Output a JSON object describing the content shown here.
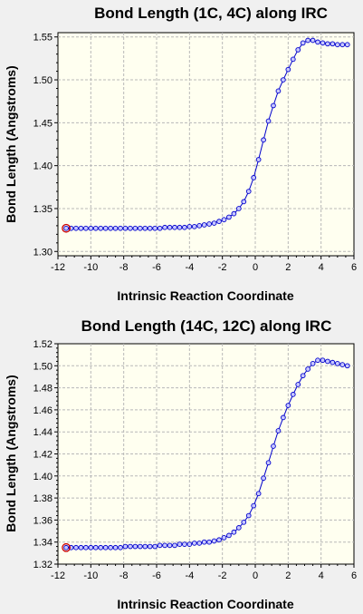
{
  "colors": {
    "background": "#f0f0f0",
    "plot_area": "#fffff0",
    "grid": "#b8b8b8",
    "line": "#0000cc",
    "marker_fill": "#c8c8ff",
    "highlight": "#cc0000"
  },
  "chart_data": [
    {
      "type": "line",
      "title": "Bond Length (1C, 4C) along IRC",
      "xlabel": "Intrinsic Reaction Coordinate",
      "ylabel": "Bond Length (Angstroms)",
      "xlim": [
        -12,
        6
      ],
      "ylim": [
        1.295,
        1.555
      ],
      "xticks": [
        -12,
        -10,
        -8,
        -6,
        -4,
        -2,
        0,
        2,
        4,
        6
      ],
      "xtick_labels": [
        "-12",
        "-10",
        "-8",
        "-6",
        "-4",
        "-2",
        "0",
        "2",
        "4",
        "6"
      ],
      "yticks": [
        1.3,
        1.35,
        1.4,
        1.45,
        1.5,
        1.55
      ],
      "ytick_labels": [
        "1.30",
        "1.35",
        "1.40",
        "1.45",
        "1.50",
        "1.55"
      ],
      "grid": true,
      "highlighted_point_index": 0,
      "series": [
        {
          "x": [
            -11.5,
            -11.2,
            -10.9,
            -10.6,
            -10.3,
            -10.0,
            -9.7,
            -9.4,
            -9.1,
            -8.8,
            -8.5,
            -8.2,
            -7.9,
            -7.6,
            -7.3,
            -7.0,
            -6.7,
            -6.4,
            -6.1,
            -5.8,
            -5.5,
            -5.2,
            -4.9,
            -4.6,
            -4.3,
            -4.0,
            -3.7,
            -3.4,
            -3.1,
            -2.8,
            -2.5,
            -2.2,
            -1.9,
            -1.6,
            -1.3,
            -1.0,
            -0.7,
            -0.4,
            -0.1,
            0.2,
            0.5,
            0.8,
            1.1,
            1.4,
            1.7,
            2.0,
            2.3,
            2.6,
            2.9,
            3.2,
            3.5,
            3.8,
            4.1,
            4.4,
            4.7,
            5.0,
            5.3,
            5.6
          ],
          "y": [
            1.327,
            1.327,
            1.327,
            1.327,
            1.327,
            1.327,
            1.327,
            1.327,
            1.327,
            1.327,
            1.327,
            1.327,
            1.327,
            1.327,
            1.327,
            1.327,
            1.327,
            1.327,
            1.327,
            1.327,
            1.328,
            1.328,
            1.328,
            1.328,
            1.328,
            1.329,
            1.329,
            1.33,
            1.331,
            1.332,
            1.333,
            1.335,
            1.337,
            1.34,
            1.344,
            1.35,
            1.358,
            1.37,
            1.386,
            1.407,
            1.43,
            1.452,
            1.47,
            1.487,
            1.5,
            1.512,
            1.524,
            1.535,
            1.543,
            1.546,
            1.546,
            1.544,
            1.543,
            1.542,
            1.542,
            1.541,
            1.541,
            1.541
          ]
        }
      ]
    },
    {
      "type": "line",
      "title": "Bond Length (14C, 12C) along IRC",
      "xlabel": "Intrinsic Reaction Coordinate",
      "ylabel": "Bond Length (Angstroms)",
      "xlim": [
        -12,
        6
      ],
      "ylim": [
        1.32,
        1.52
      ],
      "xticks": [
        -12,
        -10,
        -8,
        -6,
        -4,
        -2,
        0,
        2,
        4,
        6
      ],
      "xtick_labels": [
        "-12",
        "-10",
        "-8",
        "-6",
        "-4",
        "-2",
        "0",
        "2",
        "4",
        "6"
      ],
      "yticks": [
        1.32,
        1.34,
        1.36,
        1.38,
        1.4,
        1.42,
        1.44,
        1.46,
        1.48,
        1.5,
        1.52
      ],
      "ytick_labels": [
        "1.32",
        "1.34",
        "1.36",
        "1.38",
        "1.40",
        "1.42",
        "1.44",
        "1.46",
        "1.48",
        "1.50",
        "1.52"
      ],
      "grid": true,
      "highlighted_point_index": 0,
      "series": [
        {
          "x": [
            -11.5,
            -11.2,
            -10.9,
            -10.6,
            -10.3,
            -10.0,
            -9.7,
            -9.4,
            -9.1,
            -8.8,
            -8.5,
            -8.2,
            -7.9,
            -7.6,
            -7.3,
            -7.0,
            -6.7,
            -6.4,
            -6.1,
            -5.8,
            -5.5,
            -5.2,
            -4.9,
            -4.6,
            -4.3,
            -4.0,
            -3.7,
            -3.4,
            -3.1,
            -2.8,
            -2.5,
            -2.2,
            -1.9,
            -1.6,
            -1.3,
            -1.0,
            -0.7,
            -0.4,
            -0.1,
            0.2,
            0.5,
            0.8,
            1.1,
            1.4,
            1.7,
            2.0,
            2.3,
            2.6,
            2.9,
            3.2,
            3.5,
            3.8,
            4.1,
            4.4,
            4.7,
            5.0,
            5.3,
            5.6
          ],
          "y": [
            1.335,
            1.335,
            1.335,
            1.335,
            1.335,
            1.335,
            1.335,
            1.335,
            1.335,
            1.335,
            1.335,
            1.335,
            1.336,
            1.336,
            1.336,
            1.336,
            1.336,
            1.336,
            1.336,
            1.337,
            1.337,
            1.337,
            1.337,
            1.338,
            1.338,
            1.338,
            1.339,
            1.339,
            1.34,
            1.34,
            1.341,
            1.342,
            1.344,
            1.346,
            1.349,
            1.353,
            1.358,
            1.364,
            1.373,
            1.384,
            1.398,
            1.412,
            1.427,
            1.441,
            1.453,
            1.464,
            1.474,
            1.483,
            1.491,
            1.497,
            1.502,
            1.505,
            1.505,
            1.504,
            1.503,
            1.502,
            1.501,
            1.5
          ]
        }
      ]
    }
  ]
}
